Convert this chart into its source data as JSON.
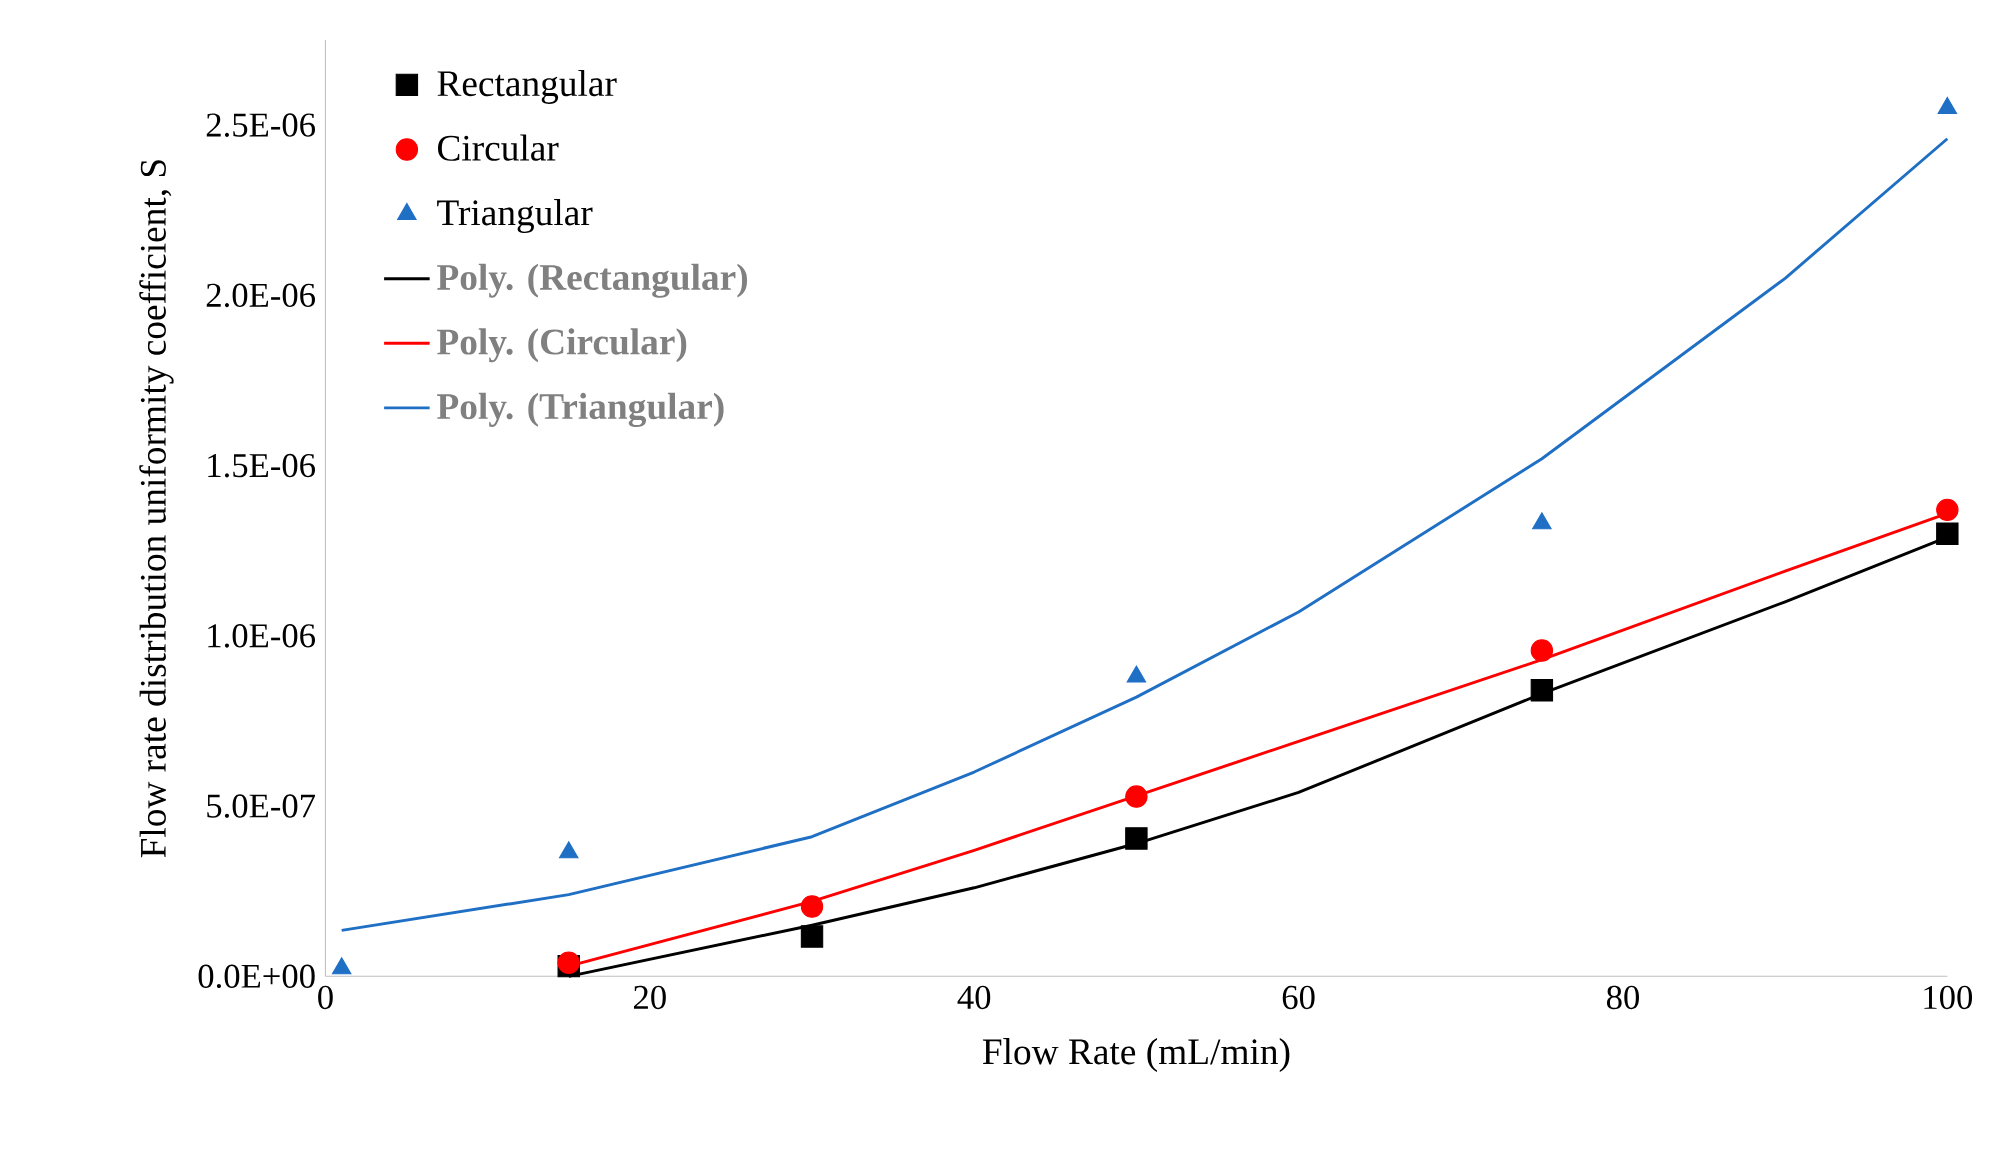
{
  "chart_data": {
    "type": "scatter",
    "xlabel": "Flow Rate (mL/min)",
    "ylabel": "Flow rate distribution uniformity coefficient, S",
    "xlim": [
      0,
      100
    ],
    "xticks": [
      0,
      20,
      40,
      60,
      80,
      100
    ],
    "ylim": [
      0,
      2.75e-06
    ],
    "yticks": [
      {
        "value": 0,
        "label": "0.0E+00"
      },
      {
        "value": 5e-07,
        "label": "5.0E-07"
      },
      {
        "value": 1e-06,
        "label": "1.0E-06"
      },
      {
        "value": 1.5e-06,
        "label": "1.5E-06"
      },
      {
        "value": 2e-06,
        "label": "2.0E-06"
      },
      {
        "value": 2.5e-06,
        "label": "2.5E-06"
      }
    ],
    "legend": "top left",
    "grid": false,
    "series": [
      {
        "name": "Rectangular",
        "marker": "square",
        "color": "#000000",
        "x": [
          15,
          30,
          50,
          75,
          100
        ],
        "values": [
          3e-08,
          1.17e-07,
          4.05e-07,
          8.4e-07,
          1.3e-06
        ]
      },
      {
        "name": "Circular",
        "marker": "circle",
        "color": "#ff0000",
        "x": [
          15,
          30,
          50,
          75,
          100
        ],
        "values": [
          4e-08,
          2.05e-07,
          5.28e-07,
          9.57e-07,
          1.37e-06
        ]
      },
      {
        "name": "Triangular",
        "marker": "triangle",
        "color": "#1f6fc5",
        "x": [
          1,
          15,
          50,
          75,
          100
        ],
        "values": [
          2.3e-08,
          3.64e-07,
          8.8e-07,
          1.33e-06,
          2.55e-06
        ]
      },
      {
        "name": "Poly. (Rectangular)",
        "type": "line",
        "marker": "none",
        "color": "#000000",
        "x": [
          15,
          30,
          40,
          50,
          60,
          75,
          90,
          100
        ],
        "values": [
          0,
          1.5e-07,
          2.6e-07,
          3.9e-07,
          5.4e-07,
          8.3e-07,
          1.1e-06,
          1.29e-06
        ]
      },
      {
        "name": "Poly. (Circular)",
        "type": "line",
        "marker": "none",
        "color": "#ff0000",
        "x": [
          15,
          30,
          40,
          50,
          60,
          75,
          90,
          100
        ],
        "values": [
          3e-08,
          2.2e-07,
          3.7e-07,
          5.3e-07,
          6.9e-07,
          9.3e-07,
          1.19e-06,
          1.36e-06
        ]
      },
      {
        "name": "Poly. (Triangular)",
        "type": "line",
        "marker": "none",
        "color": "#1f6fc5",
        "x": [
          1,
          15,
          30,
          40,
          50,
          60,
          75,
          90,
          100
        ],
        "values": [
          1.35e-07,
          2.4e-07,
          4.1e-07,
          6e-07,
          8.2e-07,
          1.07e-06,
          1.52e-06,
          2.05e-06,
          2.46e-06
        ]
      }
    ]
  }
}
